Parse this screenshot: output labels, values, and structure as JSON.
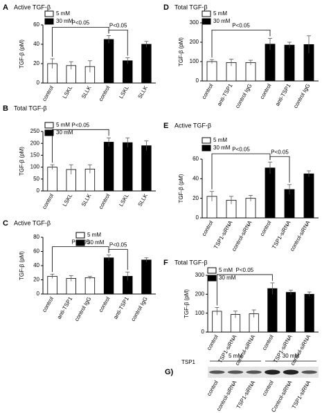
{
  "chart_data": [
    {
      "type": "bar",
      "label": "A",
      "title": "Active TGF-β",
      "ylabel": "TGF-β (pM)",
      "categories": [
        "control",
        "LSKL",
        "SLLK",
        "control",
        "LSKL",
        "SLLK"
      ],
      "series": [
        {
          "name": "5 mM",
          "color": "#ffffff",
          "values": [
            20,
            18,
            17,
            null,
            null,
            null
          ],
          "errors": [
            5,
            4,
            6,
            null,
            null,
            null
          ]
        },
        {
          "name": "30 mM",
          "color": "#000000",
          "values": [
            null,
            null,
            null,
            45,
            23,
            40
          ],
          "errors": [
            null,
            null,
            null,
            4,
            3,
            3
          ]
        }
      ],
      "ylim": [
        0,
        60
      ],
      "yticks": [
        0,
        20,
        40,
        60
      ],
      "annotations": [
        {
          "text": "P<0.05",
          "from": 0,
          "to": 3
        },
        {
          "text": "P<0.05",
          "from": 3,
          "to": 4
        }
      ]
    },
    {
      "type": "bar",
      "label": "B",
      "title": "Total TGF-β",
      "ylabel": "TGF-β (pM)",
      "categories": [
        "control",
        "LSKL",
        "SLLK",
        "control",
        "LSKL",
        "SLLK"
      ],
      "series": [
        {
          "name": "5 mM",
          "color": "#ffffff",
          "values": [
            100,
            90,
            92,
            null,
            null,
            null
          ],
          "errors": [
            10,
            20,
            18,
            null,
            null,
            null
          ]
        },
        {
          "name": "30 mM",
          "color": "#000000",
          "values": [
            null,
            null,
            null,
            205,
            203,
            190
          ],
          "errors": [
            null,
            null,
            null,
            18,
            20,
            20
          ]
        }
      ],
      "ylim": [
        0,
        250
      ],
      "yticks": [
        0,
        50,
        100,
        150,
        200,
        250
      ],
      "annotations": [
        {
          "text": "P<0.05",
          "from": 0,
          "to": 3
        }
      ]
    },
    {
      "type": "bar",
      "label": "C",
      "title": "Active TGF-β",
      "ylabel": "TGF-β (pM)",
      "categories": [
        "control",
        "anti-TSP1",
        "control IgG",
        "control",
        "anti-TSP1",
        "control IgG"
      ],
      "series": [
        {
          "name": "5 mM",
          "color": "#ffffff",
          "values": [
            25,
            22,
            23,
            null,
            null,
            null
          ],
          "errors": [
            3,
            4,
            2,
            null,
            null,
            null
          ]
        },
        {
          "name": "30 mM",
          "color": "#000000",
          "values": [
            null,
            null,
            null,
            51,
            25,
            48
          ],
          "errors": [
            null,
            null,
            null,
            4,
            6,
            3
          ]
        }
      ],
      "ylim": [
        0,
        80
      ],
      "yticks": [
        0,
        20,
        40,
        60,
        80
      ],
      "annotations": [
        {
          "text": "P<0.05",
          "from": 0,
          "to": 3
        },
        {
          "text": "P<0.05",
          "from": 3,
          "to": 4
        }
      ]
    },
    {
      "type": "bar",
      "label": "D",
      "title": "Total TGF-β",
      "ylabel": "TGF-β (pM)",
      "categories": [
        "control",
        "anti-TSP1",
        "control IgG",
        "control",
        "anti-TSP1",
        "control IgG"
      ],
      "series": [
        {
          "name": "5 mM",
          "color": "#ffffff",
          "values": [
            100,
            95,
            95,
            null,
            null,
            null
          ],
          "errors": [
            10,
            18,
            12,
            null,
            null,
            null
          ]
        },
        {
          "name": "30 mM",
          "color": "#000000",
          "values": [
            null,
            null,
            null,
            190,
            185,
            188
          ],
          "errors": [
            null,
            null,
            null,
            30,
            15,
            45
          ]
        }
      ],
      "ylim": [
        0,
        300
      ],
      "yticks": [
        0,
        100,
        200,
        300
      ],
      "annotations": [
        {
          "text": "P<0.05",
          "from": 0,
          "to": 3
        }
      ]
    },
    {
      "type": "bar",
      "label": "E",
      "title": "Active TGF-β",
      "ylabel": "TGF-β (pM)",
      "categories": [
        "control",
        "TSP1-siRNA",
        "control-siRNA",
        "control",
        "TSP1-siRNA",
        "control-siRNA"
      ],
      "series": [
        {
          "name": "5 mM",
          "color": "#ffffff",
          "values": [
            22,
            18,
            20,
            null,
            null,
            null
          ],
          "errors": [
            5,
            4,
            3,
            null,
            null,
            null
          ]
        },
        {
          "name": "30 mM",
          "color": "#000000",
          "values": [
            null,
            null,
            null,
            51,
            29,
            45
          ],
          "errors": [
            null,
            null,
            null,
            6,
            5,
            3
          ]
        }
      ],
      "ylim": [
        0,
        60
      ],
      "yticks": [
        0,
        20,
        40,
        60
      ],
      "annotations": [
        {
          "text": "P<0.05",
          "from": 0,
          "to": 3
        },
        {
          "text": "P<0.05",
          "from": 3,
          "to": 4
        }
      ]
    },
    {
      "type": "bar",
      "label": "F",
      "title": "Total TGF-β",
      "ylabel": "TGF-β (pM)",
      "categories": [
        "control",
        "TSP1-siRNA",
        "control-siRNA",
        "control",
        "TSP1-siRNA",
        "control-siRNA"
      ],
      "series": [
        {
          "name": "5 mM",
          "color": "#ffffff",
          "values": [
            110,
            93,
            97,
            null,
            null,
            null
          ],
          "errors": [
            20,
            18,
            20,
            null,
            null,
            null
          ]
        },
        {
          "name": "30 mM",
          "color": "#000000",
          "values": [
            null,
            null,
            null,
            230,
            210,
            200
          ],
          "errors": [
            null,
            null,
            null,
            30,
            12,
            12
          ]
        }
      ],
      "ylim": [
        0,
        300
      ],
      "yticks": [
        0,
        100,
        200,
        300
      ],
      "annotations": [
        {
          "text": "P<0.05",
          "from": 0,
          "to": 3
        }
      ]
    }
  ],
  "blot": {
    "label": "G)",
    "row_label": "TSP1",
    "groups": [
      {
        "text": "5 mM",
        "from": 0,
        "to": 2
      },
      {
        "text": "30 mM",
        "from": 3,
        "to": 5
      }
    ],
    "lanes": [
      "control",
      "control-siRNA",
      "TSP1-siRNA",
      "control",
      "Control-siRNA",
      "TSP1-siRNA"
    ]
  }
}
